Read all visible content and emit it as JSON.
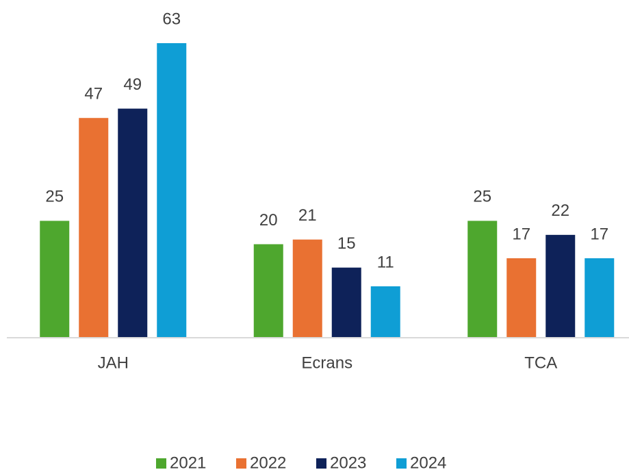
{
  "chart_data": {
    "type": "bar",
    "categories": [
      "JAH",
      "Ecrans",
      "TCA"
    ],
    "series": [
      {
        "name": "2021",
        "color": "#4ea72e",
        "values": [
          25,
          20,
          25
        ]
      },
      {
        "name": "2022",
        "color": "#e97132",
        "values": [
          47,
          21,
          17
        ]
      },
      {
        "name": "2023",
        "color": "#0e2259",
        "values": [
          49,
          15,
          22
        ]
      },
      {
        "name": "2024",
        "color": "#0f9ed5",
        "values": [
          63,
          11,
          17
        ]
      }
    ],
    "legend": "bottom"
  }
}
